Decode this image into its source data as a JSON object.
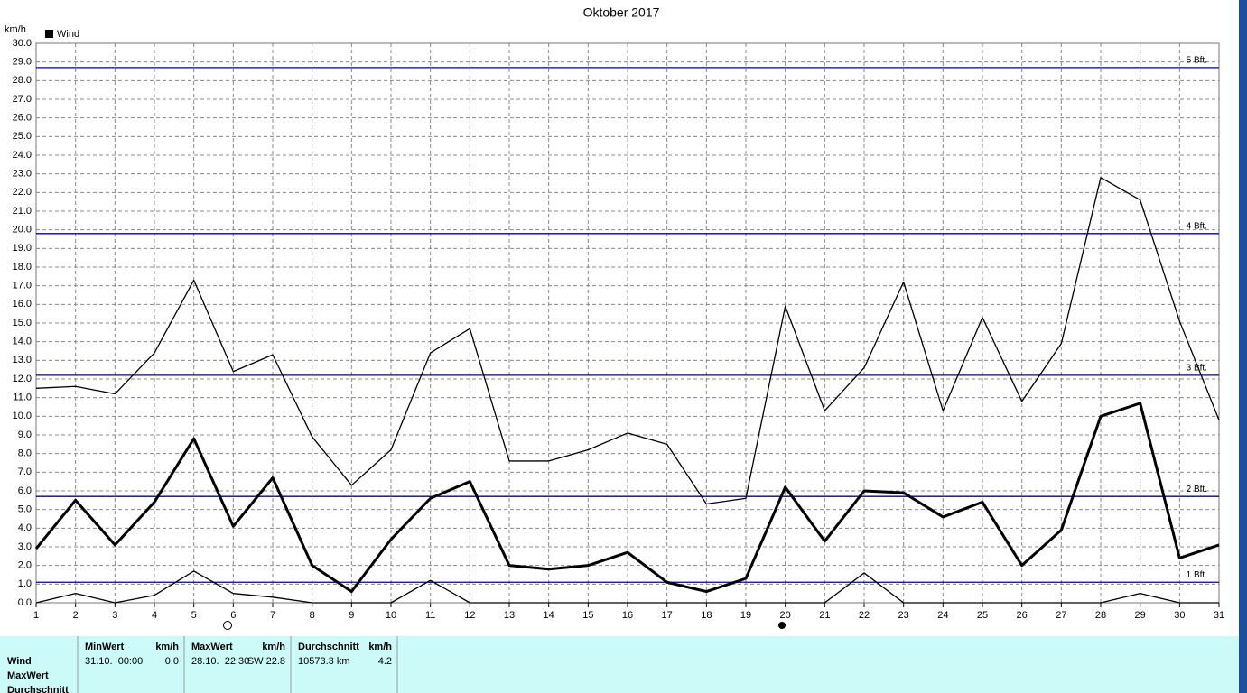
{
  "chart_data": {
    "type": "line",
    "title": "Oktober 2017",
    "y_unit": "km/h",
    "legend": "Wind",
    "legend_color": "#000000",
    "x": [
      1,
      2,
      3,
      4,
      5,
      6,
      7,
      8,
      9,
      10,
      11,
      12,
      13,
      14,
      15,
      16,
      17,
      18,
      19,
      20,
      21,
      22,
      23,
      24,
      25,
      26,
      27,
      28,
      29,
      30,
      31
    ],
    "xlim": [
      1,
      31
    ],
    "xticks": [
      1,
      2,
      3,
      4,
      5,
      6,
      7,
      8,
      9,
      10,
      11,
      12,
      13,
      14,
      15,
      16,
      17,
      18,
      19,
      20,
      21,
      22,
      23,
      24,
      25,
      26,
      27,
      28,
      29,
      30,
      31
    ],
    "ylim": [
      0,
      30
    ],
    "yticks": [
      {
        "value": 0,
        "label": "0.0"
      },
      {
        "value": 1,
        "label": "1.0"
      },
      {
        "value": 2,
        "label": "2.0"
      },
      {
        "value": 3,
        "label": "3.0"
      },
      {
        "value": 4,
        "label": "4.0"
      },
      {
        "value": 5,
        "label": "5.0"
      },
      {
        "value": 6,
        "label": "6.0"
      },
      {
        "value": 7,
        "label": "7.0"
      },
      {
        "value": 8,
        "label": "8.0"
      },
      {
        "value": 9,
        "label": "9.0"
      },
      {
        "value": 10,
        "label": "10.0"
      },
      {
        "value": 11,
        "label": "11.0"
      },
      {
        "value": 12,
        "label": "12.0"
      },
      {
        "value": 13,
        "label": "13.0"
      },
      {
        "value": 14,
        "label": "14.0"
      },
      {
        "value": 15,
        "label": "15.0"
      },
      {
        "value": 16,
        "label": "16.0"
      },
      {
        "value": 17,
        "label": "17.0"
      },
      {
        "value": 18,
        "label": "18.0"
      },
      {
        "value": 19,
        "label": "19.0"
      },
      {
        "value": 20,
        "label": "20.0"
      },
      {
        "value": 21,
        "label": "21.0"
      },
      {
        "value": 22,
        "label": "22.0"
      },
      {
        "value": 23,
        "label": "23.0"
      },
      {
        "value": 24,
        "label": "24.0"
      },
      {
        "value": 25,
        "label": "25.0"
      },
      {
        "value": 26,
        "label": "26.0"
      },
      {
        "value": 27,
        "label": "27.0"
      },
      {
        "value": 28,
        "label": "28.0"
      },
      {
        "value": 29,
        "label": "29.0"
      },
      {
        "value": 30,
        "label": "30.0"
      }
    ],
    "grid": true,
    "reference_lines": [
      {
        "value": 28.7,
        "label": "5 Bft."
      },
      {
        "value": 19.8,
        "label": "4 Bft."
      },
      {
        "value": 12.2,
        "label": "3 Bft."
      },
      {
        "value": 5.7,
        "label": "2 Bft."
      },
      {
        "value": 1.1,
        "label": "1 Bft."
      }
    ],
    "reference_color": "#0000a0",
    "series": [
      {
        "color": "#000000",
        "width": 1.3,
        "values": [
          11.5,
          11.6,
          11.2,
          13.4,
          17.3,
          12.4,
          13.3,
          8.9,
          6.3,
          8.2,
          13.4,
          14.7,
          7.6,
          7.6,
          8.2,
          9.1,
          8.5,
          5.3,
          5.6,
          15.9,
          10.3,
          12.6,
          17.2,
          10.3,
          15.3,
          10.8,
          13.9,
          22.8,
          21.6,
          15.1,
          9.8
        ]
      },
      {
        "color": "#000000",
        "width": 3,
        "values": [
          2.9,
          5.5,
          3.1,
          5.4,
          8.8,
          4.1,
          6.7,
          2.0,
          0.6,
          3.4,
          5.6,
          6.5,
          2.0,
          1.8,
          2.0,
          2.7,
          1.1,
          0.6,
          1.3,
          6.2,
          3.3,
          6.0,
          5.9,
          4.6,
          5.4,
          2.0,
          3.9,
          10.0,
          10.7,
          2.4,
          3.1
        ]
      },
      {
        "color": "#000000",
        "width": 1.3,
        "values": [
          0,
          0.5,
          0,
          0.4,
          1.7,
          0.5,
          0.3,
          0,
          0,
          0,
          1.2,
          0,
          0,
          0,
          0,
          0,
          0,
          0,
          0,
          0,
          0,
          1.6,
          0,
          0,
          0,
          0,
          0,
          0,
          0.5,
          0,
          0
        ]
      }
    ]
  },
  "table": {
    "row_labels": [
      "Wind",
      "MaxWert",
      "Durchschnitt"
    ],
    "columns": [
      {
        "header": "MinWert",
        "unit": "km/h",
        "cells": [
          "31.10.  00:00",
          "0.0"
        ]
      },
      {
        "header": "MaxWert",
        "unit": "km/h",
        "cells": [
          "28.10.  22:30",
          "SW 22.8"
        ]
      },
      {
        "header": "Durchschnitt",
        "unit": "km/h",
        "cells": [
          "10573.3 km",
          "4.2"
        ]
      }
    ]
  }
}
